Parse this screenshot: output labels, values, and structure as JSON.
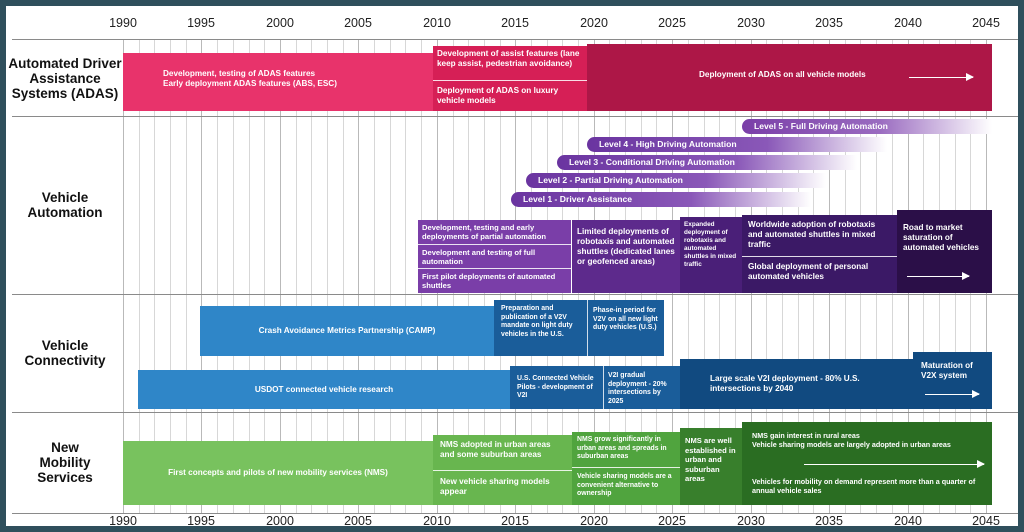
{
  "timeline": {
    "years": [
      "1990",
      "1995",
      "2000",
      "2005",
      "2010",
      "2015",
      "2020",
      "2025",
      "2030",
      "2035",
      "2040",
      "2045"
    ]
  },
  "categories": {
    "adas": "Automated Driver Assistance Systems (ADAS)",
    "automation": "Vehicle Automation",
    "connectivity": "Vehicle Connectivity",
    "mobility": "New Mobility Services"
  },
  "adas": {
    "dev_line1": "Development, testing of ADAS features",
    "dev_line2": "Early deployment ADAS features (ABS, ESC)",
    "assist_dev": "Development of assist features (lane keep assist, pedestrian avoidance)",
    "luxury": "Deployment of ADAS on luxury vehicle models",
    "all_models": "Deployment of ADAS on all vehicle models"
  },
  "automation": {
    "levels": [
      "Level 5 - Full Driving Automation",
      "Level 4 - High Driving Automation",
      "Level 3 - Conditional Driving Automation",
      "Level 2 - Partial Driving Automation",
      "Level 1 - Driver Assistance"
    ],
    "early": [
      "Development, testing and early deployments of partial automation",
      "Development and testing of full automation",
      "First pilot deployments of automated shuttles"
    ],
    "limited": "Limited deployments of robotaxis and automated shuttles (dedicated lanes or geofenced areas)",
    "expanded": "Expanded deployment of robotaxis and automated shuttles in mixed traffic",
    "worldwide": "Worldwide adoption of robotaxis and automated shuttles in mixed traffic",
    "global_personal": "Global deployment of personal automated vehicles",
    "road_market": "Road to market saturation of automated vehicles"
  },
  "connectivity": {
    "camp": "Crash Avoidance Metrics Partnership (CAMP)",
    "prep": "Preparation and publication of a V2V mandate on light duty vehicles in the U.S.",
    "phase": "Phase-in period for V2V on all new light duty vehicles (U.S.)",
    "usdot": "USDOT connected vehicle research",
    "pilots": "U.S. Connected Vehicle Pilots - development of V2I",
    "v2i_gradual": "V2I gradual deployment - 20% intersections by 2025",
    "v2i_large": "Large scale V2I deployment - 80% U.S. intersections by 2040",
    "v2x": "Maturation of V2X system"
  },
  "mobility": {
    "first": "First concepts and pilots of new mobility services (NMS)",
    "urban": "NMS adopted in urban areas and some suburban areas",
    "sharing": "New vehicle sharing models appear",
    "grow": "NMS grow significantly in urban areas and spreads in suburban areas",
    "convenient": "Vehicle sharing models are a convenient alternative to ownership",
    "established": "NMS are well established in urban and suburban areas",
    "rural": "NMS gain interest in rural areas",
    "sharing_urban": "Vehicle sharing models are largely adopted in urban areas",
    "on_demand": "Vehicles for mobility on demand represent more than a quarter of annual vehicle sales"
  },
  "colors": {
    "adas_dark": "#ad1747",
    "adas_mid": "#d61f56",
    "adas_light": "#e8336b",
    "auto_light": "#7a3ea8",
    "auto_mid": "#5d2a8c",
    "auto_dark": "#2b0f48",
    "conn_light": "#2f86c8",
    "conn_mid": "#1a5d9a",
    "conn_dark": "#114a80",
    "mob_light": "#78c25e",
    "mob_mid": "#50a43e",
    "mob_dark": "#2a6d22"
  }
}
